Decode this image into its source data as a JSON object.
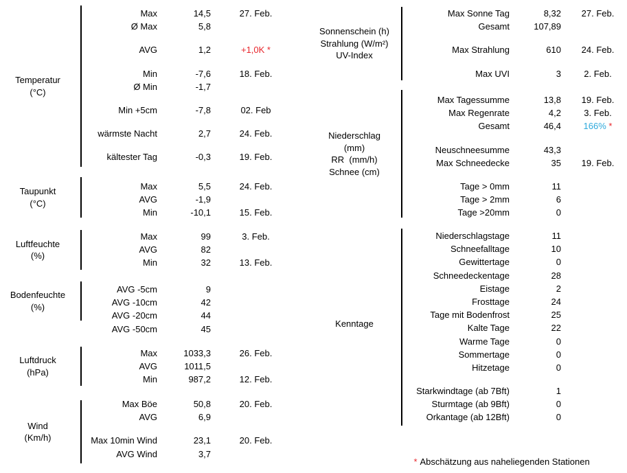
{
  "colors": {
    "red": "#e8262c",
    "blue": "#2ea9dc"
  },
  "footnote": {
    "asterisk": "*",
    "text": "Abschätzung aus naheliegenden Stationen"
  },
  "left_sections": [
    {
      "label_lines": [
        "Temperatur",
        "(°C)"
      ],
      "groups": [
        [
          {
            "param": "Max",
            "value": "14,5",
            "date": "27. Feb."
          },
          {
            "param": "Ø Max",
            "value": "5,8"
          }
        ],
        [
          {
            "param": "AVG",
            "value": "1,2",
            "note": [
              {
                "text": "+1,0K *",
                "color": "red"
              }
            ]
          }
        ],
        [
          {
            "param": "Min",
            "value": "-7,6",
            "date": "18. Feb."
          },
          {
            "param": "Ø Min",
            "value": "-1,7"
          }
        ],
        [
          {
            "param": "Min +5cm",
            "value": "-7,8",
            "date": "02. Feb"
          }
        ],
        [
          {
            "param": "wärmste Nacht",
            "value": "2,7",
            "date": "24. Feb."
          }
        ],
        [
          {
            "param": "kältester Tag",
            "value": "-0,3",
            "date": "19. Feb."
          }
        ]
      ]
    },
    {
      "label_lines": [
        "Taupunkt",
        "(°C)"
      ],
      "groups": [
        [
          {
            "param": "Max",
            "value": "5,5",
            "date": "24. Feb."
          },
          {
            "param": "AVG",
            "value": "-1,9"
          },
          {
            "param": "Min",
            "value": "-10,1",
            "date": "15. Feb."
          }
        ]
      ]
    },
    {
      "label_lines": [
        "Luftfeuchte",
        "(%)"
      ],
      "groups": [
        [
          {
            "param": "Max",
            "value": "99",
            "date": "3. Feb."
          },
          {
            "param": "AVG",
            "value": "82"
          },
          {
            "param": "Min",
            "value": "32",
            "date": "13. Feb."
          }
        ]
      ]
    },
    {
      "label_lines": [
        "Bodenfeuchte",
        "(%)"
      ],
      "groups": [
        [
          {
            "param": "AVG -5cm",
            "value": "9"
          },
          {
            "param": "AVG -10cm",
            "value": "42"
          },
          {
            "param": "AVG -20cm",
            "value": "44"
          },
          {
            "param": "AVG -50cm",
            "value": "45"
          }
        ]
      ]
    },
    {
      "label_lines": [
        "Luftdruck",
        "(hPa)"
      ],
      "groups": [
        [
          {
            "param": "Max",
            "value": "1033,3",
            "date": "26. Feb."
          },
          {
            "param": "AVG",
            "value": "1011,5"
          },
          {
            "param": "Min",
            "value": "987,2",
            "date": "12. Feb."
          }
        ]
      ]
    },
    {
      "label_lines": [
        "Wind",
        "(Km/h)"
      ],
      "groups": [
        [
          {
            "param": "Max Böe",
            "value": "50,8",
            "date": "20. Feb."
          },
          {
            "param": "AVG",
            "value": "6,9"
          }
        ],
        [
          {
            "param": "Max 10min Wind",
            "value": "23,1",
            "date": "20. Feb."
          },
          {
            "param": "AVG Wind",
            "value": "3,7"
          }
        ]
      ]
    }
  ],
  "right_sections": [
    {
      "label_lines": [
        "Sonnenschein (h)",
        "Strahlung (W/m²)",
        "UV-Index"
      ],
      "groups": [
        [
          {
            "param": "Max Sonne Tag",
            "value": "8,32",
            "date": "27. Feb."
          },
          {
            "param": "Gesamt",
            "value": "107,89"
          }
        ],
        [
          {
            "param": "Max Strahlung",
            "value": "610",
            "date": "24. Feb."
          }
        ],
        [
          {
            "param": "Max UVI",
            "value": "3",
            "date": "2. Feb."
          }
        ]
      ]
    },
    {
      "label_lines": [
        "Niederschlag",
        "(mm)",
        "RR  (mm/h)",
        "Schnee (cm)"
      ],
      "groups": [
        [
          {
            "param": "Max Tagessumme",
            "value": "13,8",
            "date": "19. Feb."
          },
          {
            "param": "Max Regenrate",
            "value": "4,2",
            "date": "3. Feb."
          },
          {
            "param": "Gesamt",
            "value": "46,4",
            "note": [
              {
                "text": "166% ",
                "color": "blue"
              },
              {
                "text": "*",
                "color": "red"
              }
            ]
          }
        ],
        [
          {
            "param": "Neuschneesumme",
            "value": "43,3"
          },
          {
            "param": "Max Schneedecke",
            "value": "35",
            "date": "19. Feb."
          }
        ],
        [
          {
            "param": "Tage > 0mm",
            "value": "11"
          },
          {
            "param": "Tage > 2mm",
            "value": "6"
          },
          {
            "param": "Tage >20mm",
            "value": "0"
          }
        ]
      ]
    },
    {
      "label_lines": [
        "Kenntage"
      ],
      "groups": [
        [
          {
            "param": "Niederschlagstage",
            "value": "11"
          },
          {
            "param": "Schneefalltage",
            "value": "10"
          },
          {
            "param": "Gewittertage",
            "value": "0"
          },
          {
            "param": "Schneedeckentage",
            "value": "28"
          },
          {
            "param": "Eistage",
            "value": "2"
          },
          {
            "param": "Frosttage",
            "value": "24"
          },
          {
            "param": "Tage mit Bodenfrost",
            "value": "25"
          },
          {
            "param": "Kalte Tage",
            "value": "22"
          },
          {
            "param": "Warme Tage",
            "value": "0"
          },
          {
            "param": "Sommertage",
            "value": "0"
          },
          {
            "param": "Hitzetage",
            "value": "0"
          }
        ],
        [
          {
            "param": "Starkwindtage (ab 7Bft)",
            "value": "1"
          },
          {
            "param": "Sturmtage (ab 9Bft)",
            "value": "0"
          },
          {
            "param": "Orkantage (ab 12Bft)",
            "value": "0"
          }
        ]
      ]
    }
  ]
}
